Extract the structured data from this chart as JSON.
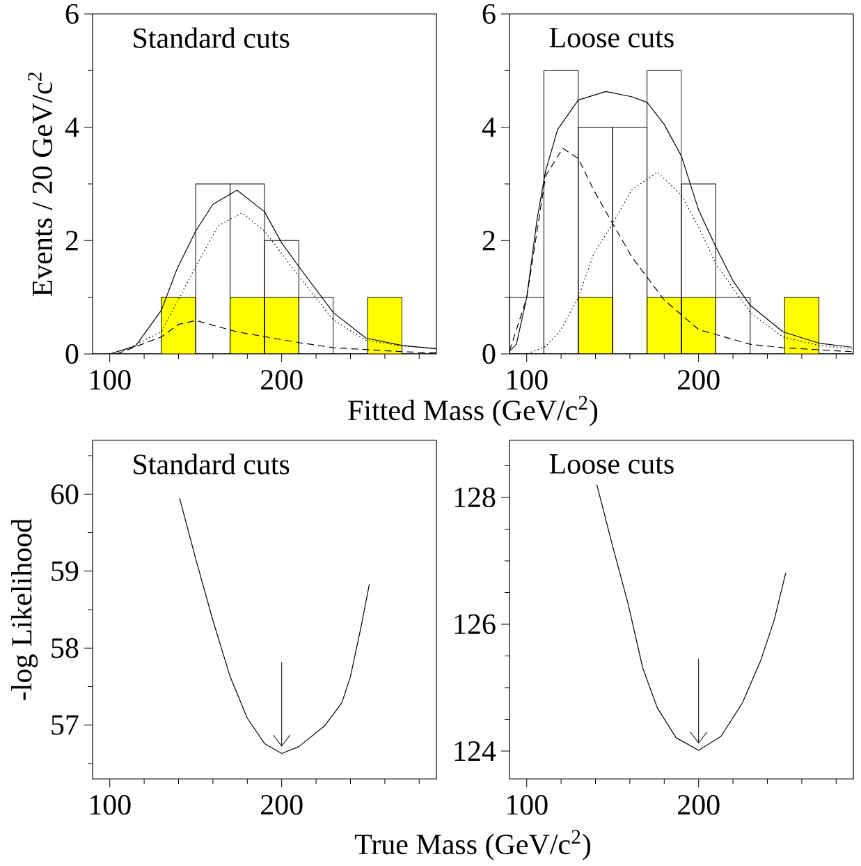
{
  "chart_data": [
    {
      "type": "histogram",
      "title": "Standard cuts",
      "ylabel": "Events / 20 GeV/c$^{2}$",
      "xlabel": "Fitted Mass (GeV/c$^{2}$)",
      "bins": [
        90,
        110,
        130,
        150,
        170,
        190,
        210,
        230,
        250,
        270,
        290
      ],
      "xlim": [
        90,
        290
      ],
      "ylim": [
        0,
        6
      ],
      "xticks": [
        100,
        200,
        {
          "value": 120,
          "label": null
        },
        {
          "value": 140,
          "label": null
        },
        {
          "value": 160,
          "label": null
        },
        {
          "value": 180,
          "label": null
        },
        {
          "value": 220,
          "label": null
        },
        {
          "value": 240,
          "label": null
        },
        {
          "value": 260,
          "label": null
        },
        {
          "value": 280,
          "label": null
        }
      ],
      "yticks": [
        0,
        2,
        4,
        6,
        {
          "value": 1,
          "label": null
        },
        {
          "value": 3,
          "label": null
        },
        {
          "value": 5,
          "label": null
        }
      ],
      "series": [
        {
          "color": "#ffff00",
          "values": [
            0,
            0,
            1,
            0,
            1,
            1,
            0,
            0,
            1,
            0
          ]
        },
        {
          "color": "#000000",
          "values": [
            0,
            0,
            null,
            3,
            3,
            2,
            1,
            0,
            null,
            0
          ]
        },
        {
          "type": "line",
          "color": "#000000",
          "line_style": "solid",
          "x": [
            100,
            115,
            130,
            139,
            150,
            160,
            174,
            190,
            200,
            210,
            230,
            249,
            270,
            290
          ],
          "values": [
            0,
            0.14,
            0.77,
            1.49,
            2.17,
            2.64,
            2.89,
            2.51,
            1.96,
            1.54,
            0.73,
            0.28,
            0.15,
            0.09
          ]
        },
        {
          "type": "line",
          "color": "#000000",
          "line_style": "dotted",
          "x": [
            104,
            130,
            150,
            163,
            177,
            190,
            210,
            230,
            249,
            270,
            290
          ],
          "values": [
            0,
            0.39,
            1.54,
            2.26,
            2.49,
            2.17,
            1.37,
            0.6,
            0.24,
            0.14,
            0.1
          ]
        },
        {
          "type": "line",
          "color": "#000000",
          "line_style": "dashed",
          "x": [
            104,
            130,
            140,
            150,
            174,
            210,
            230,
            270,
            290
          ],
          "values": [
            0,
            0.3,
            0.52,
            0.59,
            0.39,
            0.2,
            0.11,
            0.04,
            0.02
          ]
        }
      ]
    },
    {
      "type": "histogram",
      "title": "Loose cuts",
      "bins": [
        90,
        110,
        130,
        150,
        170,
        190,
        210,
        230,
        250,
        270,
        290
      ],
      "xlim": [
        90,
        290
      ],
      "ylim": [
        0,
        6
      ],
      "xticks": [
        100,
        200,
        {
          "value": 120,
          "label": null
        },
        {
          "value": 140,
          "label": null
        },
        {
          "value": 160,
          "label": null
        },
        {
          "value": 180,
          "label": null
        },
        {
          "value": 220,
          "label": null
        },
        {
          "value": 240,
          "label": null
        },
        {
          "value": 260,
          "label": null
        },
        {
          "value": 280,
          "label": null
        }
      ],
      "yticks": [
        0,
        2,
        4,
        6,
        {
          "value": 1,
          "label": null
        },
        {
          "value": 3,
          "label": null
        },
        {
          "value": 5,
          "label": null
        }
      ],
      "series": [
        {
          "color": "#ffff00",
          "values": [
            0,
            0,
            1,
            0,
            1,
            1,
            0,
            0,
            1,
            0
          ]
        },
        {
          "color": "#000000",
          "values": [
            1,
            5,
            4,
            4,
            5,
            3,
            1,
            0,
            null,
            0
          ]
        },
        {
          "type": "line",
          "color": "#000000",
          "line_style": "solid",
          "x": [
            90.4,
            94,
            100,
            106,
            111,
            118,
            130,
            146,
            161,
            170,
            180,
            190,
            200,
            210,
            220,
            230,
            249,
            270,
            289
          ],
          "values": [
            0.06,
            0.17,
            0.99,
            2.37,
            3.23,
            3.96,
            4.48,
            4.63,
            4.54,
            4.44,
            4.05,
            3.49,
            2.54,
            1.89,
            1.29,
            0.86,
            0.39,
            0.19,
            0.12
          ]
        },
        {
          "type": "line",
          "color": "#000000",
          "line_style": "dotted",
          "x": [
            90,
            100,
            111,
            120,
            130,
            139,
            150,
            161,
            176,
            190,
            200,
            210,
            230,
            249,
            270,
            289
          ],
          "values": [
            0,
            0,
            0.13,
            0.43,
            0.99,
            1.77,
            2.3,
            2.89,
            3.21,
            2.8,
            2.24,
            1.59,
            0.73,
            0.3,
            0.15,
            0.09
          ]
        },
        {
          "type": "line",
          "color": "#000000",
          "line_style": "dashed",
          "x": [
            90,
            100,
            111,
            121,
            130,
            139,
            150,
            161,
            180,
            200,
            230,
            249,
            289
          ],
          "values": [
            0.05,
            0.99,
            3.14,
            3.63,
            3.45,
            2.89,
            2.3,
            1.72,
            0.95,
            0.43,
            0.17,
            0.11,
            0.04
          ]
        }
      ]
    },
    {
      "type": "line",
      "title": "Standard cuts",
      "ylabel": "-log Likelihood",
      "xlabel": "True Mass (GeV/c$^{2}$)",
      "xlim": [
        90,
        290
      ],
      "ylim": [
        56.3,
        60.7
      ],
      "xticks": [
        100,
        200,
        {
          "value": 120,
          "label": null
        },
        {
          "value": 140,
          "label": null
        },
        {
          "value": 160,
          "label": null
        },
        {
          "value": 180,
          "label": null
        },
        {
          "value": 220,
          "label": null
        },
        {
          "value": 240,
          "label": null
        },
        {
          "value": 260,
          "label": null
        },
        {
          "value": 280,
          "label": null
        }
      ],
      "yticks": [
        57,
        58,
        59,
        60,
        {
          "value": 56.5,
          "label": null
        },
        {
          "value": 57.5,
          "label": null
        },
        {
          "value": 58.5,
          "label": null
        },
        {
          "value": 59.5,
          "label": null
        },
        {
          "value": 60.5,
          "label": null
        }
      ],
      "series": [
        {
          "color": "#000000",
          "line_style": "solid",
          "x": [
            140.6,
            150,
            160,
            170,
            180,
            190,
            200,
            210,
            225,
            235,
            240,
            246,
            251
          ],
          "values": [
            59.95,
            59.16,
            58.36,
            57.63,
            57.09,
            56.76,
            56.63,
            56.72,
            56.99,
            57.29,
            57.63,
            58.26,
            58.83
          ]
        }
      ]
    },
    {
      "type": "line",
      "title": "Loose cuts",
      "xlim": [
        90,
        290
      ],
      "ylim": [
        123.56,
        128.9
      ],
      "xticks": [
        100,
        200,
        {
          "value": 120,
          "label": null
        },
        {
          "value": 140,
          "label": null
        },
        {
          "value": 160,
          "label": null
        },
        {
          "value": 180,
          "label": null
        },
        {
          "value": 220,
          "label": null
        },
        {
          "value": 240,
          "label": null
        },
        {
          "value": 260,
          "label": null
        },
        {
          "value": 280,
          "label": null
        }
      ],
      "yticks": [
        124,
        126,
        128,
        {
          "value": 124.5,
          "label": null
        },
        {
          "value": 125,
          "label": null
        },
        {
          "value": 125.5,
          "label": null
        },
        {
          "value": 126.5,
          "label": null
        },
        {
          "value": 127,
          "label": null
        },
        {
          "value": 127.5,
          "label": null
        },
        {
          "value": 128.5,
          "label": null
        }
      ],
      "series": [
        {
          "color": "#000000",
          "line_style": "solid",
          "x": [
            140.8,
            149.8,
            159,
            167.5,
            176,
            186.9,
            200,
            213,
            225.5,
            236.3,
            244,
            250.7
          ],
          "values": [
            128.2,
            127.25,
            126.32,
            125.31,
            124.68,
            124.21,
            124.01,
            124.23,
            124.76,
            125.44,
            126.07,
            126.81
          ]
        }
      ]
    }
  ]
}
